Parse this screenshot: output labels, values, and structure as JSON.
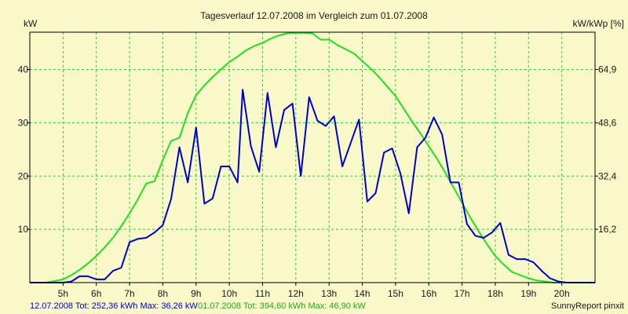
{
  "chart_data": {
    "type": "line",
    "title": "Tagesverlauf 12.07.2008 im Vergleich zum 01.07.2008",
    "y_left_label": "kW",
    "y_right_label": "kW/kWp [%]",
    "x_range": [
      4.0,
      21.0
    ],
    "y_range": [
      0,
      47
    ],
    "x_ticks": [
      5,
      6,
      7,
      8,
      9,
      10,
      11,
      12,
      13,
      14,
      15,
      16,
      17,
      18,
      19,
      20
    ],
    "x_tick_labels": [
      "5h",
      "6h",
      "7h",
      "8h",
      "9h",
      "10h",
      "11h",
      "12h",
      "13h",
      "14h",
      "15h",
      "16h",
      "17h",
      "18h",
      "19h",
      "20h"
    ],
    "y_left_ticks": [
      10,
      20,
      30,
      40
    ],
    "y_right_ticks": [
      {
        "y": 10,
        "label": "16,2"
      },
      {
        "y": 20,
        "label": "32,4"
      },
      {
        "y": 30,
        "label": "48,6"
      },
      {
        "y": 40,
        "label": "64,9"
      }
    ],
    "grid": true,
    "series": [
      {
        "name": "12.07.2008",
        "color": "#0000cc",
        "x": [
          4.0,
          4.5,
          5.0,
          5.25,
          5.5,
          5.75,
          6.0,
          6.25,
          6.5,
          6.75,
          7.0,
          7.25,
          7.5,
          7.75,
          8.0,
          8.25,
          8.5,
          8.75,
          9.0,
          9.25,
          9.5,
          9.75,
          10.0,
          10.25,
          10.4,
          10.65,
          10.9,
          11.15,
          11.4,
          11.65,
          11.9,
          12.15,
          12.4,
          12.65,
          12.9,
          13.15,
          13.4,
          13.65,
          13.9,
          14.15,
          14.4,
          14.65,
          14.9,
          15.15,
          15.4,
          15.65,
          15.9,
          16.15,
          16.4,
          16.65,
          16.9,
          17.15,
          17.4,
          17.65,
          17.9,
          18.15,
          18.4,
          18.65,
          18.9,
          19.15,
          19.4,
          19.65,
          19.9,
          20.15,
          20.4,
          20.65,
          21.0
        ],
        "values": [
          0,
          0,
          0,
          0.2,
          1.2,
          1.2,
          0.6,
          0.6,
          2.2,
          2.8,
          7.6,
          8.2,
          8.4,
          9.4,
          10.8,
          15.7,
          25.4,
          18.8,
          29.1,
          14.8,
          15.8,
          21.8,
          21.8,
          18.8,
          36.2,
          25.6,
          20.8,
          35.6,
          25.4,
          32.4,
          33.6,
          20.0,
          34.8,
          30.4,
          29.4,
          31.2,
          21.8,
          26.2,
          30.6,
          15.2,
          16.8,
          24.4,
          25.2,
          20.4,
          13.0,
          25.4,
          27.2,
          31.0,
          27.8,
          18.8,
          18.8,
          11.0,
          8.8,
          8.4,
          9.4,
          11.2,
          5.2,
          4.4,
          4.4,
          3.8,
          2.2,
          0.8,
          0.2,
          0,
          0,
          0,
          0
        ]
      },
      {
        "name": "01.07.2008",
        "color": "#22dd22",
        "x": [
          4.0,
          4.5,
          5.0,
          5.25,
          5.5,
          5.75,
          6.0,
          6.25,
          6.5,
          6.75,
          7.0,
          7.25,
          7.5,
          7.75,
          8.0,
          8.25,
          8.5,
          8.75,
          9.0,
          9.25,
          9.5,
          9.75,
          10.0,
          10.25,
          10.5,
          10.75,
          11.0,
          11.25,
          11.5,
          11.75,
          12.0,
          12.25,
          12.5,
          12.75,
          13.0,
          13.25,
          13.5,
          13.75,
          14.0,
          14.25,
          14.5,
          14.75,
          15.0,
          15.25,
          15.5,
          15.75,
          16.0,
          16.25,
          16.5,
          16.75,
          17.0,
          17.25,
          17.5,
          17.75,
          18.0,
          18.25,
          18.5,
          18.75,
          19.0,
          19.25,
          19.5,
          19.75,
          20.0,
          20.25,
          20.5,
          21.0
        ],
        "values": [
          0,
          0,
          0.6,
          1.4,
          2.4,
          3.6,
          5.0,
          6.6,
          8.4,
          10.6,
          13.0,
          15.6,
          18.6,
          19.0,
          23.0,
          26.6,
          27.2,
          31.8,
          35.2,
          37.0,
          38.6,
          40.0,
          41.4,
          42.4,
          43.6,
          44.4,
          45.0,
          45.8,
          46.4,
          46.8,
          46.9,
          46.9,
          46.8,
          45.6,
          45.6,
          44.6,
          43.8,
          43.0,
          41.6,
          40.2,
          38.6,
          36.8,
          35.0,
          32.6,
          30.2,
          28.0,
          25.6,
          23.2,
          20.6,
          17.8,
          15.0,
          12.2,
          9.6,
          7.2,
          5.0,
          3.4,
          2.0,
          1.4,
          0.8,
          0.4,
          0.2,
          0,
          0,
          0,
          0,
          0
        ]
      }
    ]
  },
  "footer": {
    "left": "12.07.2008 Tot: 252,36 kWh Max: 36,26 kW",
    "right_green": "01.07.2008 Tot: 394,60 kWh Max: 46,90 kW",
    "credit": "SunnyReport pinxit"
  },
  "colors": {
    "background": "#f8f8c8",
    "grid": "#33cc33",
    "axis": "#000000"
  }
}
